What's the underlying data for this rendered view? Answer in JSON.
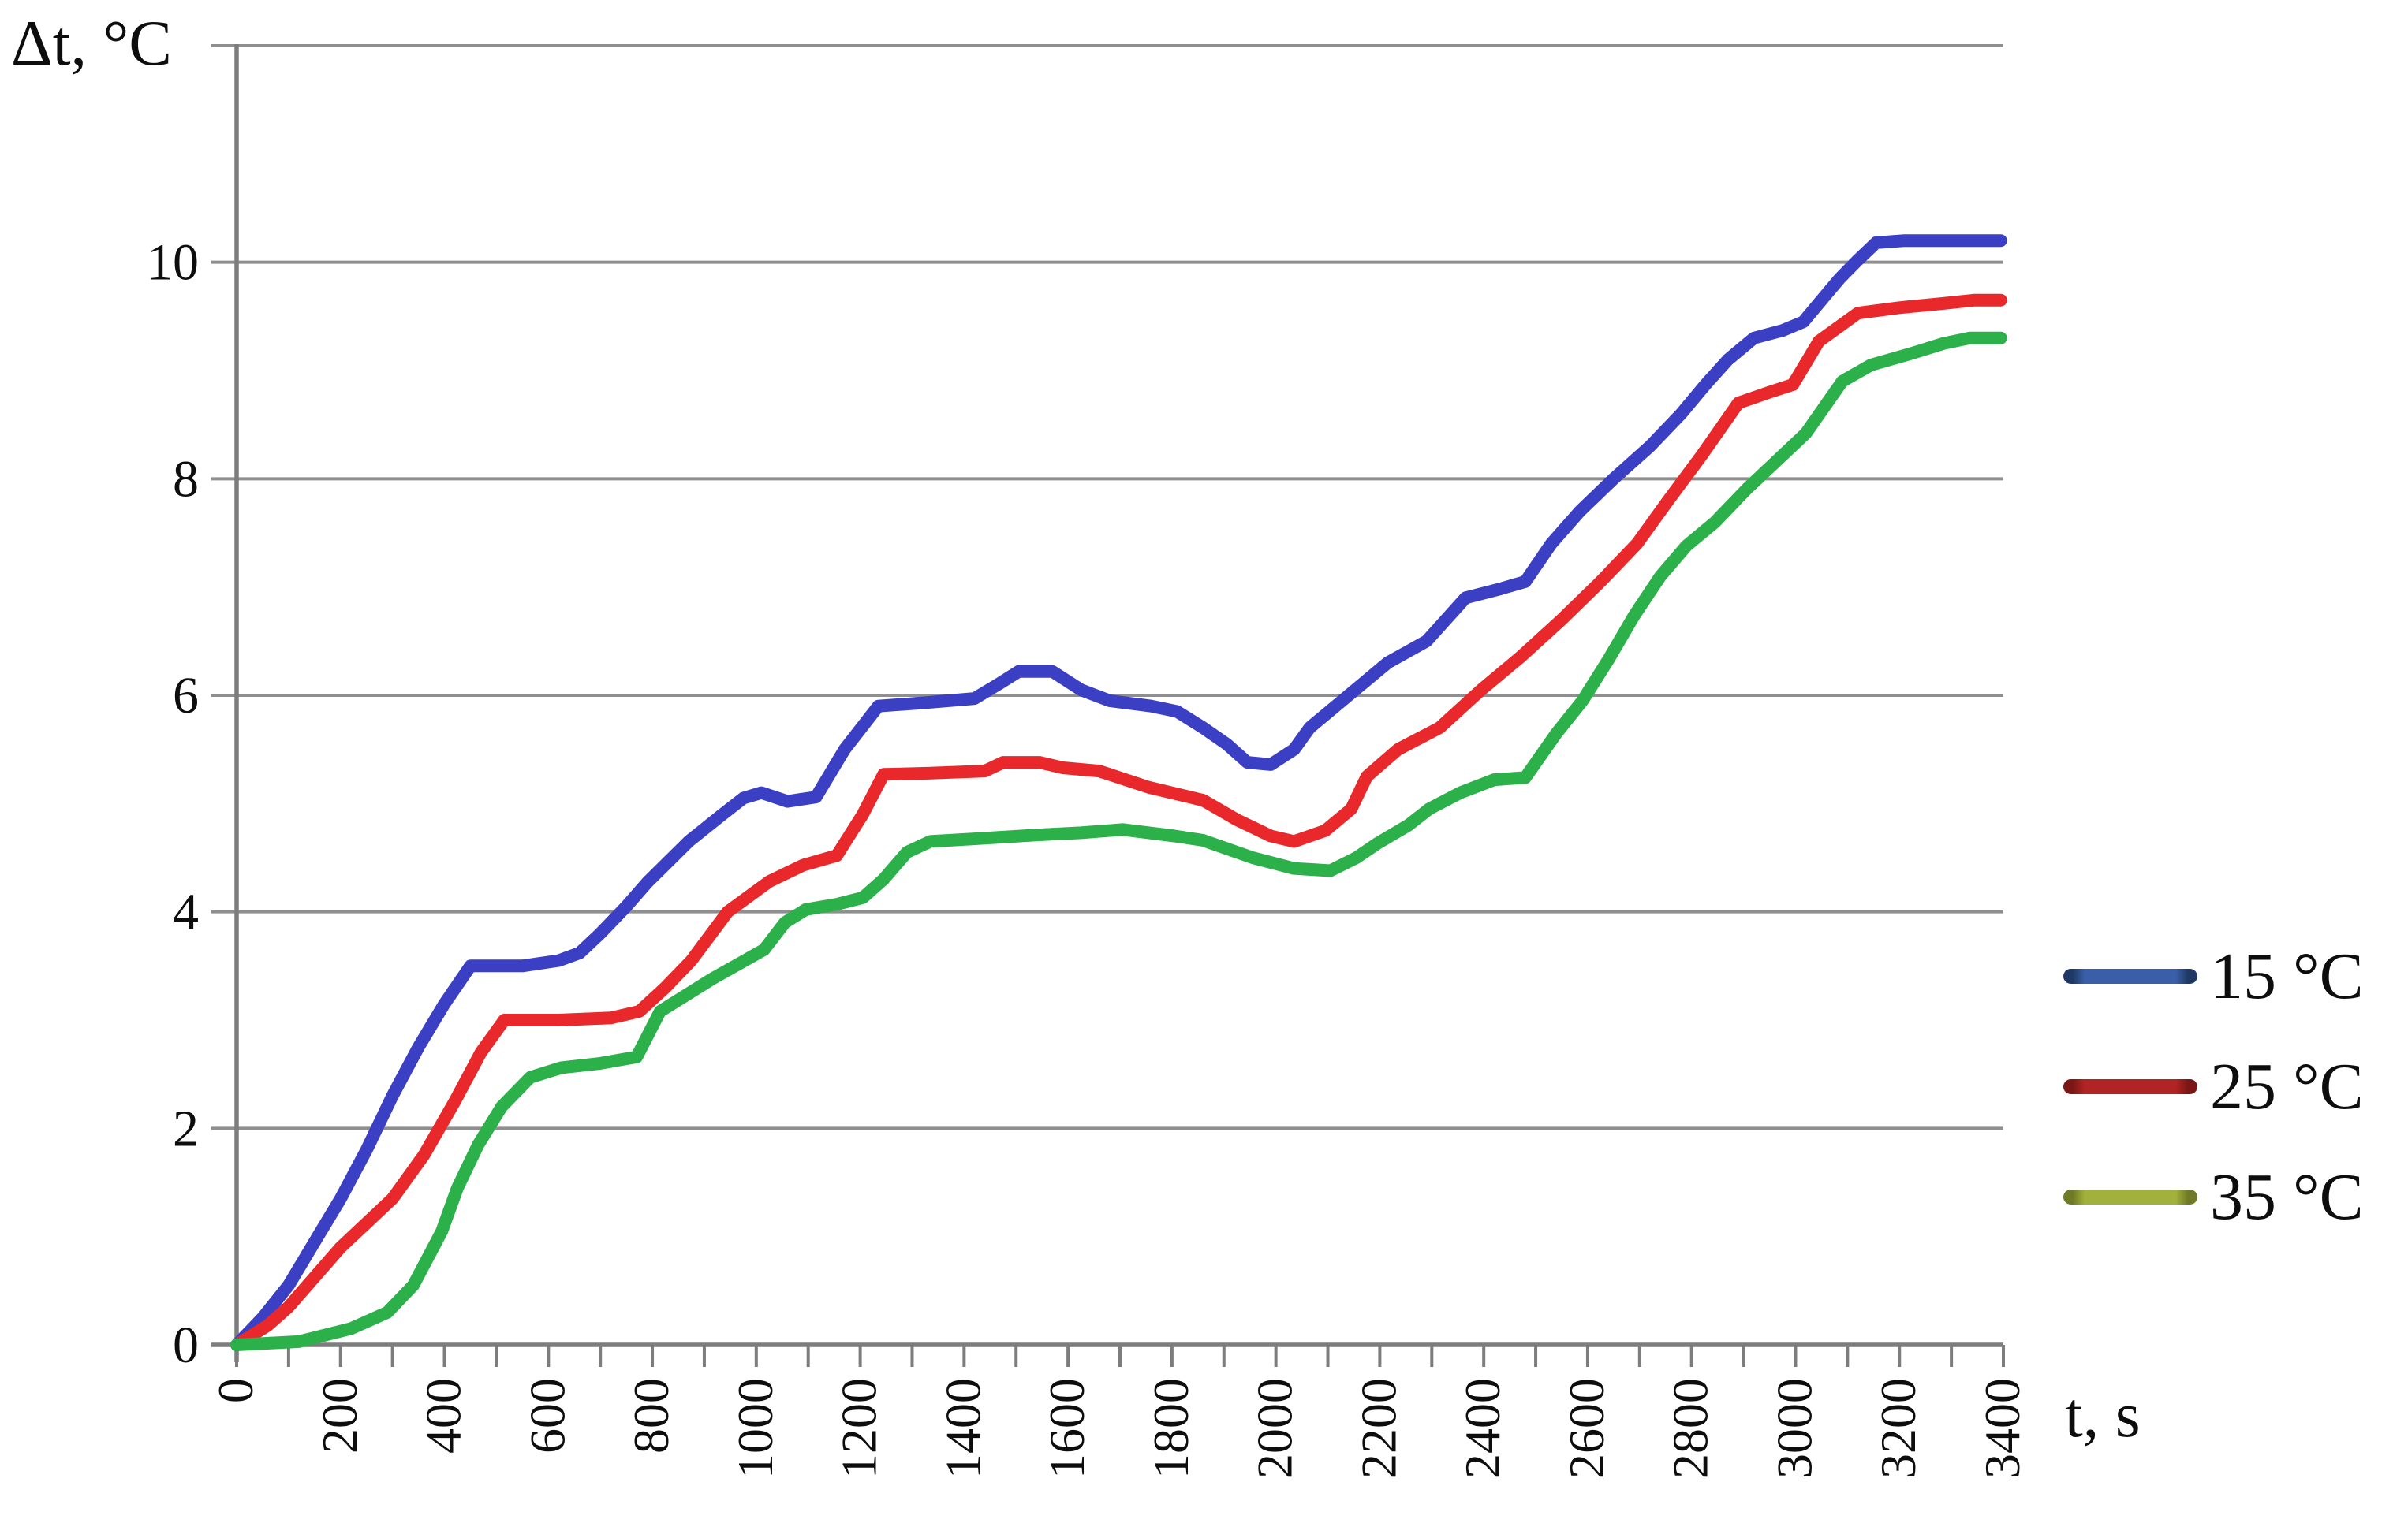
{
  "chart_data": {
    "type": "line",
    "title": "",
    "ylabel": "Δt, °C",
    "xlabel": "t, s",
    "xlim": [
      0,
      3400
    ],
    "ylim": [
      0,
      12
    ],
    "x_tick_labels": [
      0,
      200,
      400,
      600,
      800,
      1000,
      1200,
      1400,
      1600,
      1800,
      2000,
      2200,
      2400,
      2600,
      2800,
      3000,
      3200,
      3400
    ],
    "x_minor_tick_step": 100,
    "y_tick_labels": [
      0,
      2,
      4,
      6,
      8,
      10
    ],
    "y_gridlines": [
      0,
      2,
      4,
      6,
      8,
      10,
      12
    ],
    "grid": "horizontal",
    "legend_position": "right",
    "colors": {
      "axis": "#7d7d7d",
      "grid": "#8f8f8f",
      "text": "#0d0d0d"
    },
    "series": [
      {
        "name": "15 °C",
        "color": "#3b3fc4",
        "legend_color": "#3a5fa8",
        "legend_tip": "#1f3864",
        "points": [
          [
            0,
            0
          ],
          [
            50,
            0.25
          ],
          [
            100,
            0.55
          ],
          [
            150,
            0.95
          ],
          [
            200,
            1.35
          ],
          [
            250,
            1.8
          ],
          [
            300,
            2.3
          ],
          [
            350,
            2.75
          ],
          [
            400,
            3.15
          ],
          [
            450,
            3.5
          ],
          [
            550,
            3.5
          ],
          [
            620,
            3.55
          ],
          [
            660,
            3.62
          ],
          [
            700,
            3.8
          ],
          [
            750,
            4.05
          ],
          [
            790,
            4.27
          ],
          [
            870,
            4.65
          ],
          [
            930,
            4.88
          ],
          [
            975,
            5.05
          ],
          [
            1010,
            5.1
          ],
          [
            1060,
            5.02
          ],
          [
            1115,
            5.06
          ],
          [
            1170,
            5.5
          ],
          [
            1235,
            5.9
          ],
          [
            1320,
            5.93
          ],
          [
            1420,
            5.97
          ],
          [
            1465,
            6.1
          ],
          [
            1505,
            6.22
          ],
          [
            1570,
            6.22
          ],
          [
            1625,
            6.05
          ],
          [
            1680,
            5.95
          ],
          [
            1760,
            5.9
          ],
          [
            1810,
            5.85
          ],
          [
            1860,
            5.7
          ],
          [
            1905,
            5.55
          ],
          [
            1945,
            5.38
          ],
          [
            1990,
            5.36
          ],
          [
            2035,
            5.5
          ],
          [
            2065,
            5.7
          ],
          [
            2140,
            6.0
          ],
          [
            2215,
            6.3
          ],
          [
            2290,
            6.5
          ],
          [
            2365,
            6.9
          ],
          [
            2430,
            6.98
          ],
          [
            2480,
            7.05
          ],
          [
            2530,
            7.4
          ],
          [
            2585,
            7.7
          ],
          [
            2650,
            8.0
          ],
          [
            2720,
            8.3
          ],
          [
            2780,
            8.6
          ],
          [
            2825,
            8.86
          ],
          [
            2870,
            9.1
          ],
          [
            2920,
            9.3
          ],
          [
            2975,
            9.37
          ],
          [
            3015,
            9.45
          ],
          [
            3050,
            9.65
          ],
          [
            3085,
            9.85
          ],
          [
            3120,
            10.02
          ],
          [
            3155,
            10.18
          ],
          [
            3210,
            10.2
          ],
          [
            3395,
            10.2
          ]
        ]
      },
      {
        "name": "25 °C",
        "color": "#e8282b",
        "legend_color": "#b02424",
        "legend_tip": "#7a1716",
        "points": [
          [
            0,
            0
          ],
          [
            60,
            0.18
          ],
          [
            100,
            0.35
          ],
          [
            200,
            0.9
          ],
          [
            300,
            1.35
          ],
          [
            360,
            1.75
          ],
          [
            420,
            2.25
          ],
          [
            470,
            2.7
          ],
          [
            515,
            3.0
          ],
          [
            620,
            3.0
          ],
          [
            720,
            3.02
          ],
          [
            775,
            3.08
          ],
          [
            825,
            3.3
          ],
          [
            875,
            3.55
          ],
          [
            945,
            4.0
          ],
          [
            1025,
            4.28
          ],
          [
            1090,
            4.43
          ],
          [
            1155,
            4.52
          ],
          [
            1205,
            4.9
          ],
          [
            1245,
            5.27
          ],
          [
            1330,
            5.28
          ],
          [
            1440,
            5.3
          ],
          [
            1475,
            5.38
          ],
          [
            1545,
            5.38
          ],
          [
            1590,
            5.33
          ],
          [
            1660,
            5.3
          ],
          [
            1755,
            5.15
          ],
          [
            1860,
            5.03
          ],
          [
            1925,
            4.85
          ],
          [
            1990,
            4.7
          ],
          [
            2035,
            4.65
          ],
          [
            2095,
            4.75
          ],
          [
            2145,
            4.95
          ],
          [
            2175,
            5.25
          ],
          [
            2235,
            5.5
          ],
          [
            2315,
            5.7
          ],
          [
            2395,
            6.05
          ],
          [
            2470,
            6.35
          ],
          [
            2550,
            6.7
          ],
          [
            2625,
            7.05
          ],
          [
            2695,
            7.4
          ],
          [
            2755,
            7.8
          ],
          [
            2820,
            8.22
          ],
          [
            2890,
            8.7
          ],
          [
            2950,
            8.8
          ],
          [
            2995,
            8.87
          ],
          [
            3045,
            9.27
          ],
          [
            3120,
            9.53
          ],
          [
            3200,
            9.58
          ],
          [
            3285,
            9.62
          ],
          [
            3345,
            9.65
          ],
          [
            3395,
            9.65
          ]
        ]
      },
      {
        "name": "35 °C",
        "color": "#2bb04a",
        "legend_color": "#a2b03c",
        "legend_tip": "#6e7a25",
        "points": [
          [
            0,
            0
          ],
          [
            120,
            0.03
          ],
          [
            220,
            0.15
          ],
          [
            290,
            0.3
          ],
          [
            340,
            0.55
          ],
          [
            395,
            1.05
          ],
          [
            425,
            1.45
          ],
          [
            465,
            1.85
          ],
          [
            510,
            2.2
          ],
          [
            565,
            2.47
          ],
          [
            625,
            2.56
          ],
          [
            700,
            2.6
          ],
          [
            770,
            2.66
          ],
          [
            815,
            3.08
          ],
          [
            915,
            3.38
          ],
          [
            1015,
            3.65
          ],
          [
            1055,
            3.9
          ],
          [
            1095,
            4.02
          ],
          [
            1155,
            4.07
          ],
          [
            1205,
            4.13
          ],
          [
            1245,
            4.3
          ],
          [
            1290,
            4.55
          ],
          [
            1335,
            4.65
          ],
          [
            1440,
            4.68
          ],
          [
            1540,
            4.71
          ],
          [
            1625,
            4.73
          ],
          [
            1705,
            4.76
          ],
          [
            1805,
            4.7
          ],
          [
            1860,
            4.66
          ],
          [
            1955,
            4.5
          ],
          [
            2035,
            4.4
          ],
          [
            2105,
            4.38
          ],
          [
            2155,
            4.5
          ],
          [
            2195,
            4.63
          ],
          [
            2255,
            4.8
          ],
          [
            2295,
            4.95
          ],
          [
            2355,
            5.1
          ],
          [
            2420,
            5.22
          ],
          [
            2480,
            5.24
          ],
          [
            2540,
            5.65
          ],
          [
            2590,
            5.95
          ],
          [
            2640,
            6.33
          ],
          [
            2690,
            6.74
          ],
          [
            2740,
            7.1
          ],
          [
            2790,
            7.38
          ],
          [
            2845,
            7.6
          ],
          [
            2905,
            7.9
          ],
          [
            3020,
            8.42
          ],
          [
            3090,
            8.9
          ],
          [
            3145,
            9.05
          ],
          [
            3225,
            9.16
          ],
          [
            3285,
            9.25
          ],
          [
            3335,
            9.3
          ],
          [
            3395,
            9.3
          ]
        ]
      }
    ]
  }
}
